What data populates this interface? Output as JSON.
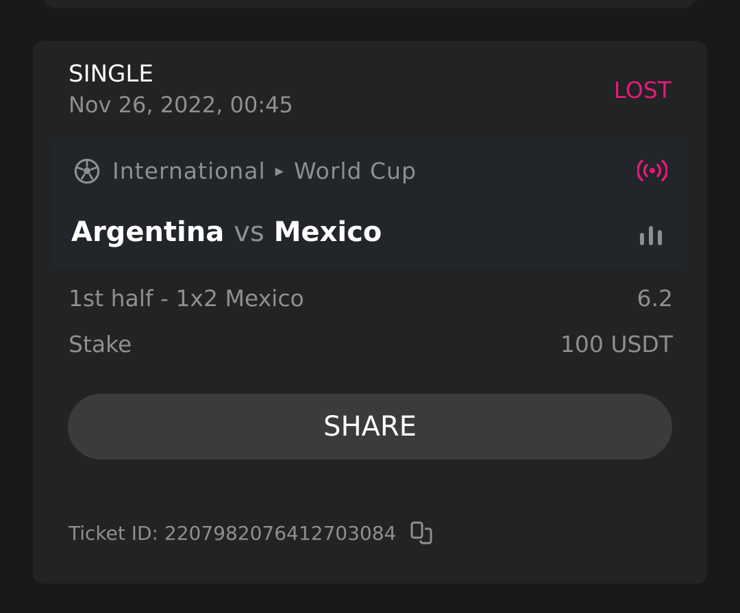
{
  "bet": {
    "type": "SINGLE",
    "date": "Nov 26, 2022, 00:45",
    "status": "LOST",
    "status_color": "#e8197a",
    "event": {
      "sport_icon": "soccer-ball-icon",
      "region": "International",
      "league": "World Cup",
      "live_icon": "live-broadcast-icon",
      "home": "Argentina",
      "vs": "vs",
      "away": "Mexico",
      "stats_icon": "bar-chart-icon"
    },
    "selection": "1st half - 1x2 Mexico",
    "odds": "6.2",
    "stake_label": "Stake",
    "stake_value": "100 USDT",
    "share_label": "SHARE",
    "ticket_id": "Ticket ID: 2207982076412703084"
  }
}
